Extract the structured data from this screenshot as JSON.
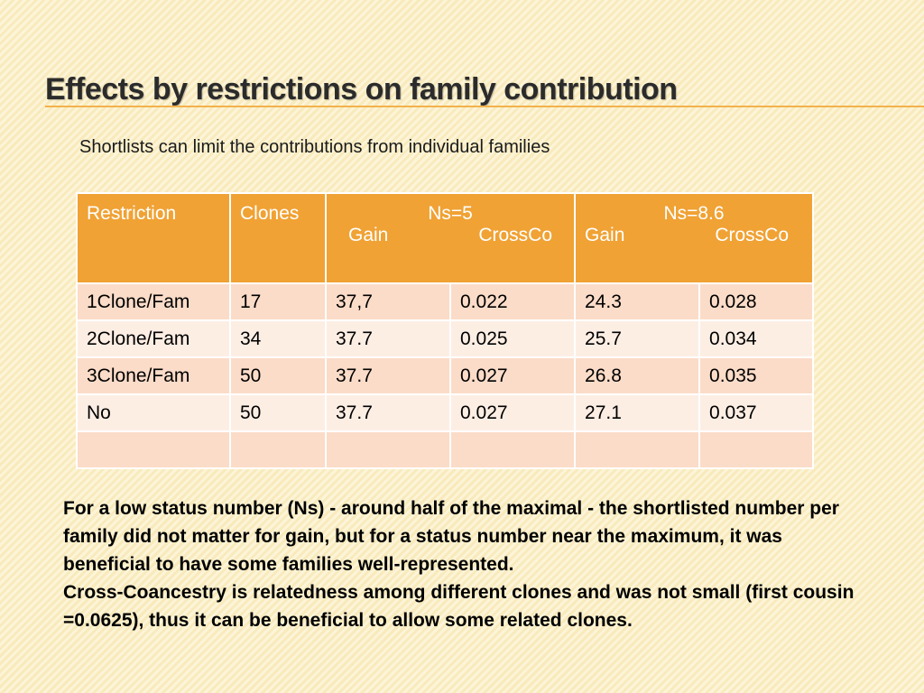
{
  "slide": {
    "title": "Effects by restrictions on family contribution",
    "subtitle": "Shortlists can limit the contributions from individual families",
    "colors": {
      "accent": "#f0a234",
      "rule": "#f2b24c",
      "row_odd": "#fbdcc8",
      "row_even": "#fdeee4",
      "background": "#fbefc4"
    }
  },
  "table": {
    "headers": {
      "restriction": "Restriction",
      "clones": "Clones",
      "ns5": {
        "label": "Ns=5",
        "gain": "Gain",
        "crossco": "CrossCo"
      },
      "ns86": {
        "label": "Ns=8.6",
        "gain": "Gain",
        "crossco": "CrossCo"
      }
    },
    "rows": [
      {
        "restriction": "1Clone/Fam",
        "clones": "17",
        "ns5_gain": "37,7",
        "ns5_crossco": "0.022",
        "ns86_gain": "24.3",
        "ns86_crossco": "0.028"
      },
      {
        "restriction": "2Clone/Fam",
        "clones": "34",
        "ns5_gain": "37.7",
        "ns5_crossco": "0.025",
        "ns86_gain": "25.7",
        "ns86_crossco": "0.034"
      },
      {
        "restriction": "3Clone/Fam",
        "clones": "50",
        "ns5_gain": "37.7",
        "ns5_crossco": "0.027",
        "ns86_gain": "26.8",
        "ns86_crossco": "0.035"
      },
      {
        "restriction": "No",
        "clones": "50",
        "ns5_gain": "37.7",
        "ns5_crossco": "0.027",
        "ns86_gain": "27.1",
        "ns86_crossco": "0.037"
      },
      {
        "restriction": "",
        "clones": "",
        "ns5_gain": "",
        "ns5_crossco": "",
        "ns86_gain": "",
        "ns86_crossco": ""
      }
    ]
  },
  "notes": {
    "paragraph1": "For a low status number (Ns) - around half of the maximal - the shortlisted number per family did not matter for gain, but for a status number near the maximum, it was beneficial to have some families well-represented.",
    "paragraph2": "Cross-Coancestry is relatedness among different clones and was not small (first cousin =0.0625), thus it can be beneficial to allow some related clones."
  }
}
